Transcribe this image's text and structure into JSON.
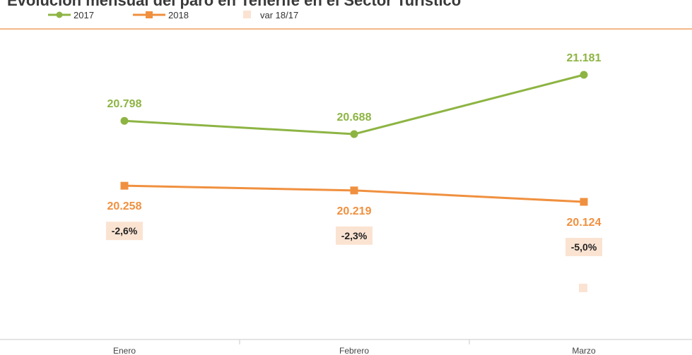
{
  "colors": {
    "series_2017": "#8db443",
    "series_2018": "#f0903f",
    "var_box": "#fbe3d2",
    "rule": "#f0a060",
    "axis": "#c8c8c8"
  },
  "chart_data": {
    "type": "line",
    "title": "Evolución mensual del paro en Tenerife en el Sector Turístico",
    "categories": [
      "Enero",
      "Febrero",
      "Marzo"
    ],
    "series": [
      {
        "name": "2017",
        "marker": "circle",
        "values": [
          20798,
          20688,
          21181
        ],
        "labels": [
          "20.798",
          "20.688",
          "21.181"
        ]
      },
      {
        "name": "2018",
        "marker": "square",
        "values": [
          20258,
          20219,
          20124
        ],
        "labels": [
          "20.258",
          "20.219",
          "20.124"
        ]
      }
    ],
    "variation": {
      "name": "var 18/17",
      "values": [
        -2.6,
        -2.3,
        -5.0
      ],
      "labels": [
        "-2,6%",
        "-2,3%",
        "-5,0%"
      ]
    },
    "legend_position": "top-left",
    "grid": false,
    "y_axis_visible": false
  }
}
